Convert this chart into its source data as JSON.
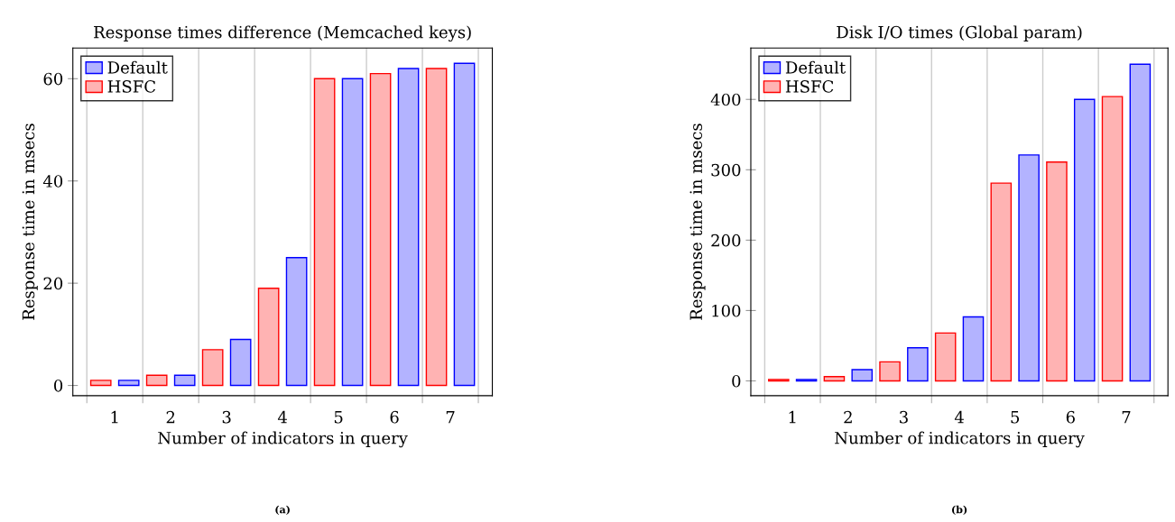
{
  "chart_data": [
    {
      "type": "bar",
      "title": "Response times difference (Memcached keys)",
      "xlabel": "Number of indicators in query",
      "ylabel": "Response time in msecs",
      "categories": [
        "1",
        "2",
        "3",
        "4",
        "5",
        "6",
        "7"
      ],
      "series": [
        {
          "name": "Default",
          "color": "#b3b3ff",
          "values": [
            1,
            2,
            9,
            25,
            60,
            62,
            63
          ]
        },
        {
          "name": "HSFC",
          "color": "#ffb3b3",
          "values": [
            1,
            2,
            7,
            19,
            60,
            61,
            62
          ]
        }
      ],
      "ylim": [
        -2,
        66
      ],
      "yticks": [
        0,
        20,
        40,
        60
      ],
      "grid": "x",
      "legend": "top left",
      "annotations": [
        "(a)"
      ]
    },
    {
      "type": "bar",
      "title": "Disk I/O times (Global param)",
      "xlabel": "Number of indicators in query",
      "ylabel": "Response time in msecs",
      "categories": [
        "1",
        "2",
        "3",
        "4",
        "5",
        "6",
        "7"
      ],
      "series": [
        {
          "name": "Default",
          "color": "#b3b3ff",
          "values": [
            2,
            16,
            47,
            91,
            321,
            400,
            450
          ]
        },
        {
          "name": "HSFC",
          "color": "#ffb3b3",
          "values": [
            2,
            6,
            27,
            68,
            281,
            311,
            404
          ]
        }
      ],
      "ylim": [
        -21,
        473
      ],
      "yticks": [
        0,
        100,
        200,
        300,
        400
      ],
      "grid": "x",
      "legend": "top left",
      "annotations": [
        "(b)"
      ]
    }
  ]
}
